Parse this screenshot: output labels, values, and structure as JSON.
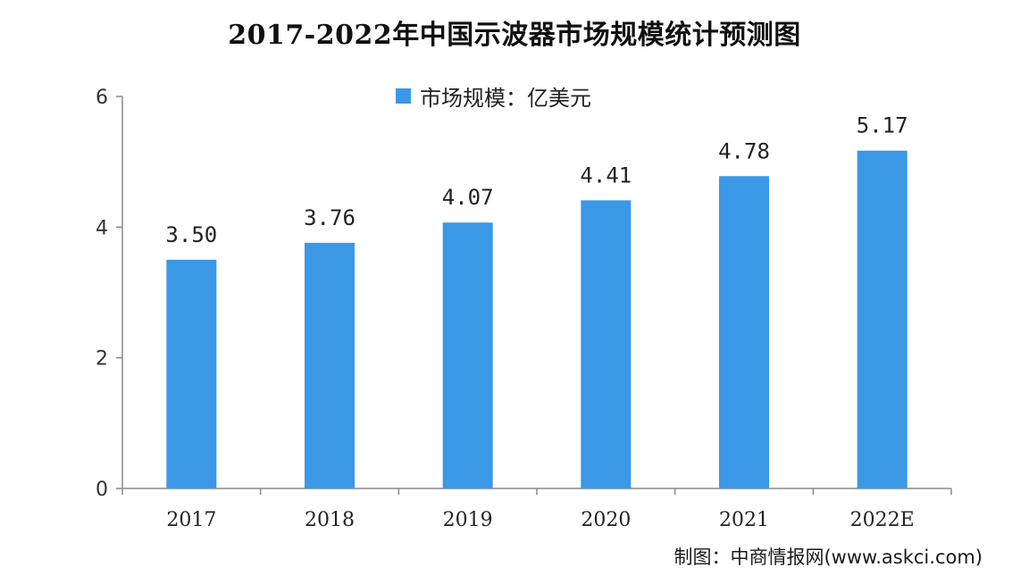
{
  "chart_data": {
    "type": "bar",
    "title": "2017-2022年中国示波器市场规模统计预测图",
    "categories": [
      "2017",
      "2018",
      "2019",
      "2020",
      "2021",
      "2022E"
    ],
    "series": [
      {
        "name": "市场规模：亿美元",
        "values": [
          3.5,
          3.76,
          4.07,
          4.41,
          4.78,
          5.17
        ],
        "labels": [
          "3.50",
          "3.76",
          "4.07",
          "4.41",
          "4.78",
          "5.17"
        ],
        "color": "#3a98e6"
      }
    ],
    "ylim": [
      0,
      6
    ],
    "yticks": [
      "0",
      "2",
      "4",
      "6"
    ],
    "xlabel": "",
    "ylabel": "",
    "grid": false,
    "legend_position": "top-center"
  },
  "source": "制图：中商情报网(www.askci.com)"
}
